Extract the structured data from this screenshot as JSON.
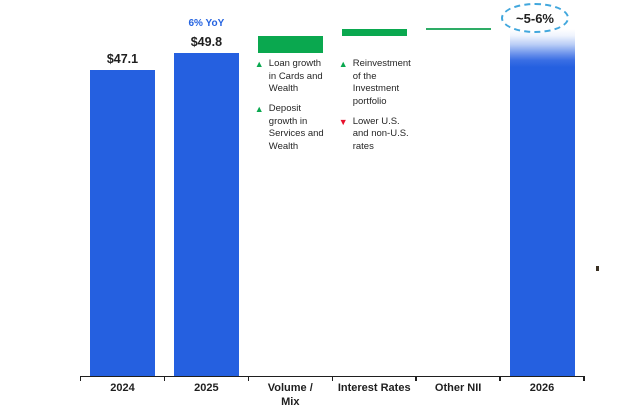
{
  "chart_data": {
    "type": "bar",
    "subtype": "waterfall-bridge",
    "title": "",
    "xlabel": "",
    "ylabel": "",
    "unit": "$ billions",
    "ylim": [
      0,
      56
    ],
    "grid": false,
    "legend": false,
    "columns": [
      {
        "label": "2024",
        "from": 0,
        "to": 47.1,
        "style": "solid",
        "value_label": "$47.1"
      },
      {
        "label": "2025",
        "from": 0,
        "to": 49.8,
        "style": "solid",
        "value_label": "$49.8",
        "growth_label": "6% YoY"
      },
      {
        "label": "Volume /\nMix",
        "from": 49.8,
        "to": 52.35,
        "style": "increase"
      },
      {
        "label": "Interest Rates",
        "from": 52.35,
        "to": 53.45,
        "style": "increase"
      },
      {
        "label": "Other NII",
        "from": 53.3,
        "to": 53.6,
        "style": "flat"
      },
      {
        "label": "2026",
        "from": 0,
        "to": 53.45,
        "style": "projected",
        "value_label": "~5-6%"
      }
    ],
    "annotations": [
      {
        "column_index": 2,
        "items": [
          {
            "direction": "up",
            "icon": "triangle-up-icon",
            "text": "Loan growth in Cards and Wealth"
          },
          {
            "direction": "up",
            "icon": "triangle-up-icon",
            "text": "Deposit growth in Services and Wealth"
          }
        ]
      },
      {
        "column_index": 3,
        "items": [
          {
            "direction": "up",
            "icon": "triangle-up-icon",
            "text": "Reinvestment of the Investment portfolio"
          },
          {
            "direction": "down",
            "icon": "triangle-down-icon",
            "text": "Lower U.S. and non-U.S. rates"
          }
        ]
      }
    ],
    "colors": {
      "bar_blue": "#2560e0",
      "increase_green": "#0aa84f",
      "flat_green": "#2eac66",
      "decrease_red": "#e8112d",
      "growth_text_blue": "#2563e0",
      "projection_oval_border": "#41a7dd",
      "axis_text": "#1f1f1f"
    },
    "glyphs": {
      "up": "▲",
      "down": "▼"
    }
  }
}
